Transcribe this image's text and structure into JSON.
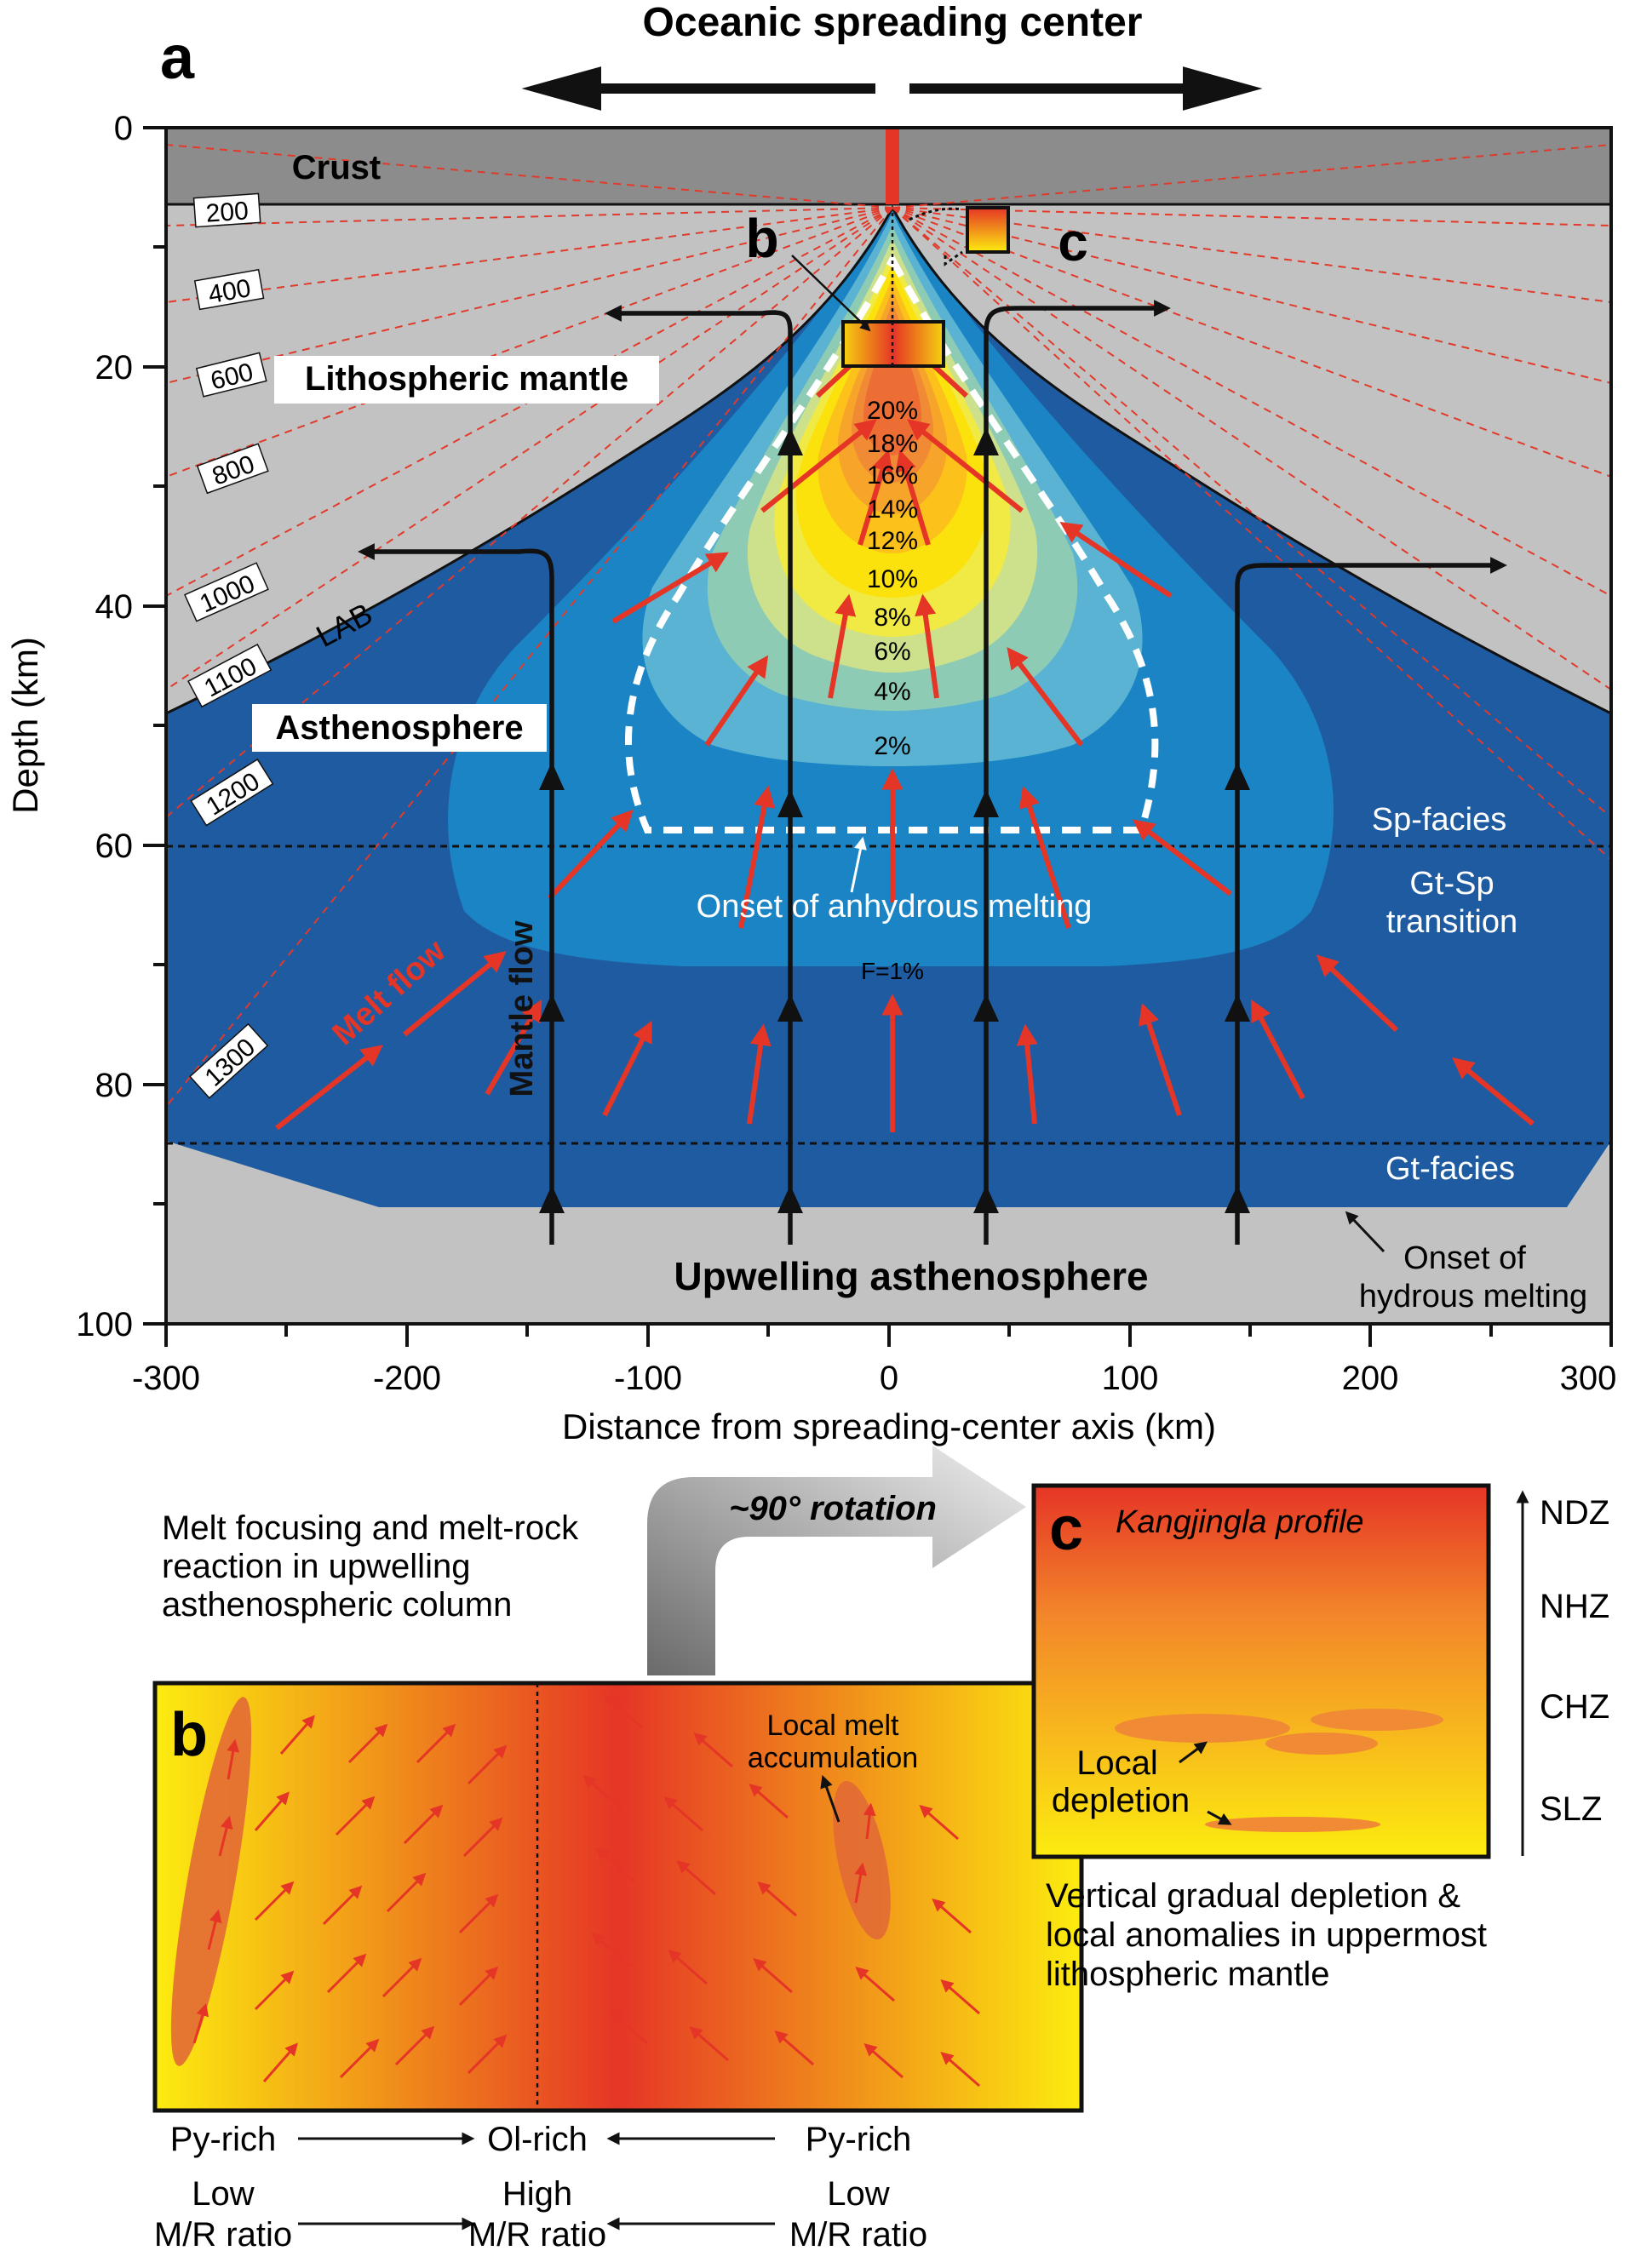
{
  "panel_a": {
    "letter": "a",
    "title": "Oceanic spreading center",
    "x_axis_label": "Distance from spreading-center axis (km)",
    "y_axis_label": "Depth (km)",
    "x_ticks": [
      "-300",
      "-200",
      "-100",
      "0",
      "100",
      "200",
      "300"
    ],
    "y_ticks": [
      "0",
      "20",
      "40",
      "60",
      "80",
      "100"
    ],
    "isotherms": [
      "200",
      "400",
      "600",
      "800",
      "1000",
      "1100",
      "1200",
      "1300"
    ],
    "melt_fractions": [
      "20%",
      "18%",
      "16%",
      "14%",
      "12%",
      "10%",
      "8%",
      "6%",
      "4%",
      "2%"
    ],
    "f_label": "F=1%",
    "crust": "Crust",
    "lith_mantle": "Lithospheric mantle",
    "asthenosphere": "Asthenosphere",
    "lab": "LAB",
    "sp_facies": "Sp-facies",
    "gt_sp_1": "Gt-Sp",
    "gt_sp_2": "transition",
    "gt_facies": "Gt-facies",
    "onset_anhydrous": "Onset of anhydrous melting",
    "onset_hydrous_1": "Onset of",
    "onset_hydrous_2": "hydrous melting",
    "melt_flow": "Melt flow",
    "mantle_flow": "Mantle flow",
    "upwelling": "Upwelling asthenosphere",
    "inset_b": "b",
    "inset_c": "c"
  },
  "panel_b": {
    "letter": "b",
    "caption_1": "Melt focusing and melt-rock",
    "caption_2": "reaction in upwelling",
    "caption_3": "asthenospheric column",
    "rotation": "~90° rotation",
    "local_melt_1": "Local melt",
    "local_melt_2": "accumulation",
    "py_rich_left": "Py-rich",
    "ol_rich": "Ol-rich",
    "py_rich_right": "Py-rich",
    "low_left": "Low",
    "high": "High",
    "low_right": "Low",
    "mr_ratio": "M/R ratio"
  },
  "panel_c": {
    "letter": "c",
    "title": "Kangjingla profile",
    "zones": [
      "NDZ",
      "NHZ",
      "CHZ",
      "SLZ"
    ],
    "local_dep_1": "Local",
    "local_dep_2": "depletion",
    "caption_1": "Vertical gradual depletion &",
    "caption_2": "local anomalies in uppermost",
    "caption_3": "lithospheric mantle"
  },
  "colors": {
    "crust": "#8c8c8c",
    "lithosphere": "#c2c2c2",
    "asthenosphere": "#1f5ba0",
    "melt_zone": "#1a84c4",
    "melt_inner": "#5ab3d2",
    "isotherm": "#e23a2a",
    "arrow_red": "#e53526",
    "gradient_yellow": "#fcec0f",
    "gradient_red": "#e53526"
  }
}
